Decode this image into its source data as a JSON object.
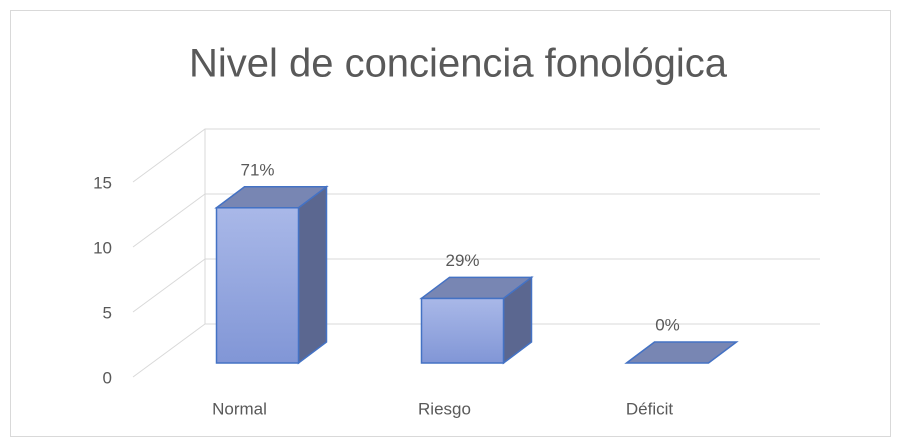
{
  "chart_data": {
    "type": "bar3d",
    "title": "Nivel de conciencia fonológica",
    "categories": [
      "Normal",
      "Riesgo",
      "Déficit"
    ],
    "values": [
      12,
      5,
      0
    ],
    "value_labels": [
      "71%",
      "29%",
      "0%"
    ],
    "color": "#8fa2dd",
    "ylim": [
      0,
      15
    ],
    "yticks": [
      0,
      5,
      10,
      15
    ],
    "grid": true
  }
}
